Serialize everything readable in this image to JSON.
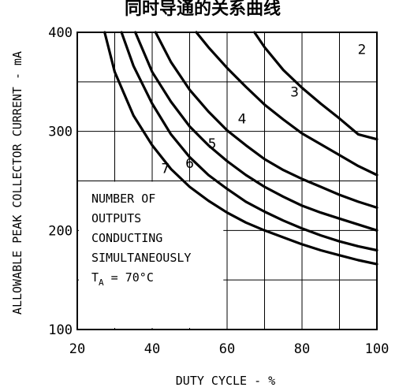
{
  "chart_data": {
    "type": "line",
    "title": "同时导通的关系曲线",
    "xlabel": "DUTY CYCLE - %",
    "ylabel": "ALLOWABLE PEAK COLLECTOR CURRENT - mA",
    "xlim": [
      20,
      100
    ],
    "ylim": [
      100,
      400
    ],
    "x_ticks": [
      "20",
      "40",
      "60",
      "80",
      "100"
    ],
    "y_ticks": [
      "100",
      "200",
      "300",
      "400"
    ],
    "grid": true,
    "annotation": {
      "lines": [
        "NUMBER OF",
        "OUTPUTS",
        "CONDUCTING",
        "SIMULTANEOUSLY"
      ],
      "temp_prefix": "T",
      "temp_sub": "A",
      "temp_suffix": " = 70°C"
    },
    "series": [
      {
        "name": "2",
        "x": [
          67.3,
          70,
          75,
          80,
          85,
          90,
          95,
          100
        ],
        "y": [
          400,
          385,
          362,
          344,
          328,
          313,
          297,
          292
        ]
      },
      {
        "name": "3",
        "x": [
          51.8,
          55,
          60,
          65,
          70,
          75,
          80,
          85,
          90,
          95,
          100
        ],
        "y": [
          400,
          385,
          364,
          345,
          327,
          312,
          298,
          287,
          276,
          265,
          256
        ]
      },
      {
        "name": "4",
        "x": [
          40.9,
          45,
          50,
          55,
          60,
          65,
          70,
          75,
          80,
          85,
          90,
          95,
          100
        ],
        "y": [
          400,
          370,
          342,
          320,
          301,
          286,
          272,
          261,
          252,
          244,
          236,
          229,
          223
        ]
      },
      {
        "name": "5",
        "x": [
          35.5,
          40,
          45,
          50,
          55,
          60,
          65,
          70,
          75,
          80,
          85,
          90,
          95,
          100
        ],
        "y": [
          400,
          360,
          330,
          305,
          286,
          270,
          256,
          244,
          234,
          225,
          218,
          212,
          206,
          200
        ]
      },
      {
        "name": "6",
        "x": [
          31.8,
          35,
          40,
          45,
          50,
          55,
          60,
          65,
          70,
          75,
          80,
          85,
          90,
          95,
          100
        ],
        "y": [
          400,
          366,
          328,
          297,
          274,
          256,
          242,
          229,
          219,
          210,
          202,
          195,
          189,
          184,
          180
        ]
      },
      {
        "name": "7",
        "x": [
          27.3,
          30,
          35,
          40,
          45,
          50,
          55,
          60,
          65,
          70,
          75,
          80,
          85,
          90,
          95,
          100
        ],
        "y": [
          400,
          360,
          316,
          286,
          262,
          244,
          230,
          218,
          208,
          200,
          193,
          186,
          180,
          175,
          170,
          166
        ]
      }
    ],
    "curve_labels": [
      {
        "text": "2",
        "x": 96.0,
        "y": 378
      },
      {
        "text": "3",
        "x": 78.0,
        "y": 335
      },
      {
        "text": "4",
        "x": 64.0,
        "y": 308
      },
      {
        "text": "5",
        "x": 56.0,
        "y": 283
      },
      {
        "text": "6",
        "x": 50.0,
        "y": 263
      },
      {
        "text": "7",
        "x": 43.5,
        "y": 258
      }
    ]
  }
}
